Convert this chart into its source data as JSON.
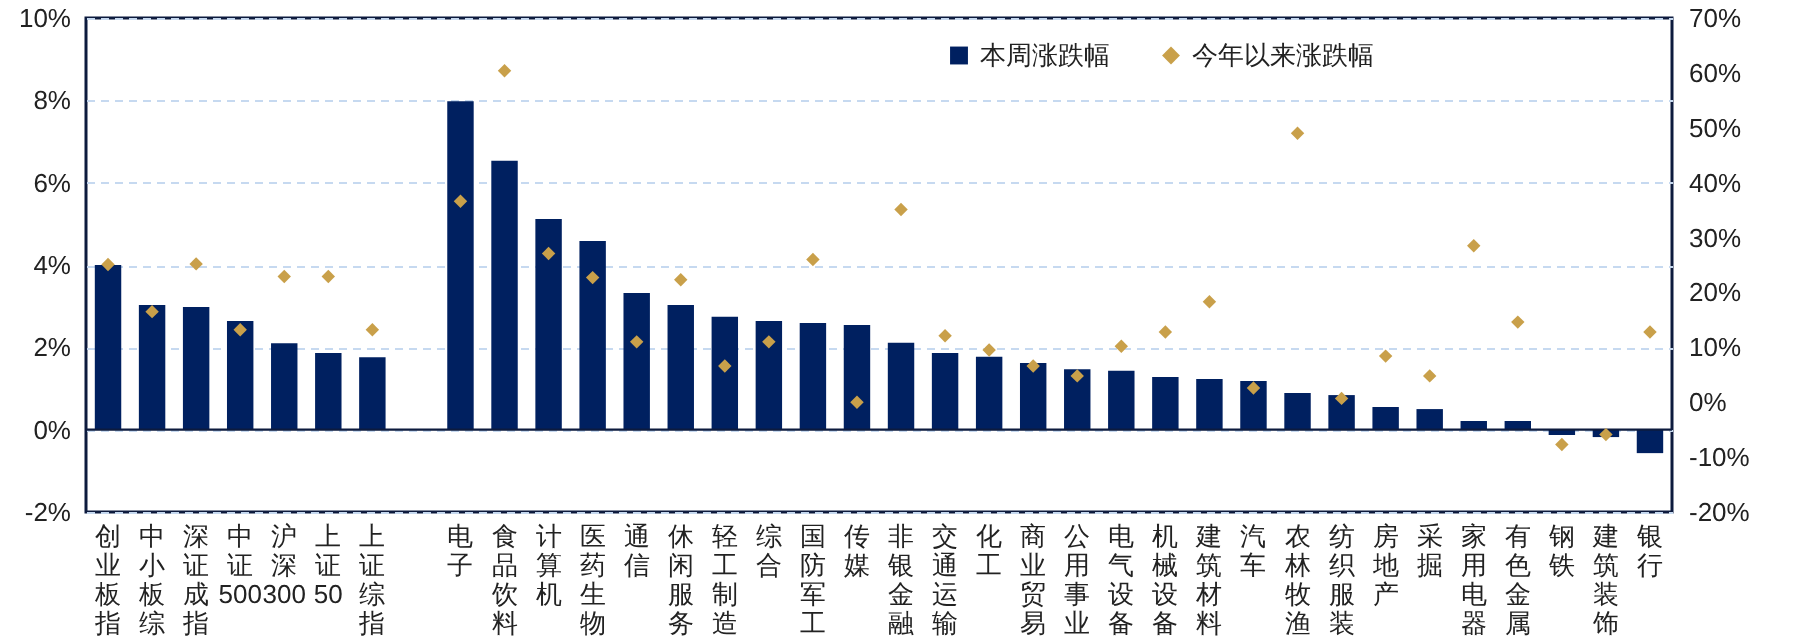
{
  "chart_data": {
    "type": "bar",
    "categories": [
      "创业板指",
      "中小板综",
      "深证成指",
      "中证500",
      "沪深300",
      "上证50",
      "上证综指",
      null,
      "电子",
      "食品饮料",
      "计算机",
      "医药生物",
      "通信",
      "休闲服务",
      "轻工制造",
      "综合",
      "国防军工",
      "传媒",
      "非银金融",
      "交通运输",
      "化工",
      "商业贸易",
      "公用事业",
      "电气设备",
      "机械设备",
      "建筑材料",
      "汽车",
      "农林牧渔",
      "纺织服装",
      "房地产",
      "采掘",
      "家用电器",
      "有色金属",
      "钢铁",
      "建筑装饰",
      "银行"
    ],
    "series": [
      {
        "name": "本周涨跌幅",
        "color": "#002060",
        "values": [
          4.0,
          3.03,
          2.98,
          2.64,
          2.1,
          1.86,
          1.76,
          null,
          7.98,
          6.53,
          5.12,
          4.58,
          3.32,
          3.03,
          2.74,
          2.64,
          2.59,
          2.54,
          2.11,
          1.86,
          1.77,
          1.62,
          1.47,
          1.43,
          1.28,
          1.23,
          1.18,
          0.89,
          0.84,
          0.55,
          0.5,
          0.21,
          0.21,
          -0.13,
          -0.18,
          -0.57
        ]
      },
      {
        "name": "今年以来涨跌幅",
        "type": "scatter",
        "axis": "y2",
        "marker": "diamond",
        "color": "#c9a04a",
        "values": [
          25.1,
          16.5,
          25.2,
          13.2,
          22.9,
          22.9,
          13.2,
          null,
          36.6,
          60.4,
          27.1,
          22.7,
          11.0,
          22.3,
          6.6,
          11.0,
          26.0,
          0.0,
          35.1,
          12.1,
          9.5,
          6.6,
          4.8,
          10.2,
          12.8,
          18.3,
          2.6,
          49.0,
          0.7,
          8.4,
          4.8,
          28.5,
          14.6,
          -7.7,
          -5.9,
          12.8
        ]
      }
    ],
    "ylim": [
      -2,
      10
    ],
    "yticks": [
      {
        "value": -2,
        "label": "-2%"
      },
      {
        "value": 0,
        "label": "0%"
      },
      {
        "value": 2,
        "label": "2%"
      },
      {
        "value": 4,
        "label": "4%"
      },
      {
        "value": 6,
        "label": "6%"
      },
      {
        "value": 8,
        "label": "8%"
      },
      {
        "value": 10,
        "label": "10%"
      }
    ],
    "y2lim": [
      -20,
      70
    ],
    "y2ticks": [
      {
        "value": -20,
        "label": "-20%"
      },
      {
        "value": -10,
        "label": "-10%"
      },
      {
        "value": 0,
        "label": "0%"
      },
      {
        "value": 10,
        "label": "10%"
      },
      {
        "value": 20,
        "label": "20%"
      },
      {
        "value": 30,
        "label": "30%"
      },
      {
        "value": 40,
        "label": "40%"
      },
      {
        "value": 50,
        "label": "50%"
      },
      {
        "value": 60,
        "label": "60%"
      },
      {
        "value": 70,
        "label": "70%"
      }
    ],
    "grid": "y",
    "legend": "top"
  }
}
